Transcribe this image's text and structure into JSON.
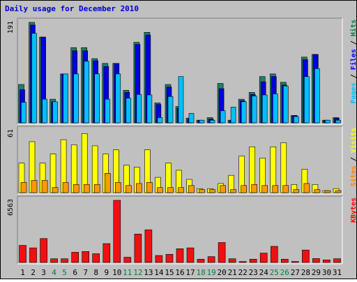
{
  "chart_data": {
    "type": "bar",
    "title": "Daily usage for December 2010",
    "categories": [
      "1",
      "2",
      "3",
      "4",
      "5",
      "6",
      "7",
      "8",
      "9",
      "10",
      "11",
      "12",
      "13",
      "14",
      "15",
      "16",
      "17",
      "18",
      "19",
      "20",
      "21",
      "22",
      "23",
      "24",
      "25",
      "26",
      "27",
      "28",
      "29",
      "30",
      "31"
    ],
    "weekend_days": [
      "4",
      "5",
      "11",
      "12",
      "18",
      "19",
      "25",
      "26"
    ],
    "panels": [
      {
        "id": "hits-files-pages",
        "ymax_label": "191",
        "ylim": [
          0,
          191
        ],
        "side_labels": [
          {
            "text": "Pages",
            "color": "#00c0ff"
          },
          {
            "text": " / ",
            "color": "#000000"
          },
          {
            "text": "Files",
            "color": "#0000ff"
          },
          {
            "text": " / ",
            "color": "#000000"
          },
          {
            "text": "Hits",
            "color": "#008040"
          }
        ],
        "series": [
          {
            "name": "Hits",
            "color": "#1e7f6a",
            "values": [
              73,
              191,
              163,
              45,
              93,
              143,
              143,
              122,
              113,
              113,
              62,
              153,
              172,
              38,
              73,
              31,
              9,
              5,
              10,
              75,
              5,
              45,
              58,
              88,
              93,
              77,
              14,
              125,
              130,
              5,
              10
            ]
          },
          {
            "name": "Files",
            "color": "#0000dd",
            "values": [
              63,
              186,
              163,
              40,
              93,
              137,
              137,
              118,
              107,
              113,
              58,
              149,
              167,
              35,
              68,
              28,
              7,
              5,
              7,
              65,
              5,
              42,
              54,
              78,
              88,
              72,
              14,
              120,
              130,
              5,
              9
            ]
          },
          {
            "name": "Pages",
            "color": "#00bfff",
            "values": [
              39,
              170,
              45,
              40,
              93,
              93,
              117,
              93,
              45,
              93,
              47,
              54,
              53,
              10,
              50,
              88,
              18,
              5,
              5,
              23,
              30,
              40,
              51,
              53,
              55,
              70,
              12,
              88,
              103,
              5,
              5
            ]
          }
        ]
      },
      {
        "id": "visits-sites",
        "ymax_label": "61",
        "ylim": [
          0,
          61
        ],
        "side_labels": [
          {
            "text": "Sites",
            "color": "#ff8000"
          },
          {
            "text": " / ",
            "color": "#000000"
          },
          {
            "text": "Visits",
            "color": "#ffff00"
          }
        ],
        "series": [
          {
            "name": "Visits",
            "color": "#ffff00",
            "values": [
              29,
              50,
              29,
              38,
              52,
              47,
              58,
              46,
              38,
              42,
              27,
              25,
              42,
              15,
              29,
              22,
              13,
              4,
              4,
              9,
              17,
              36,
              45,
              34,
              45,
              49,
              8,
              23,
              8,
              2,
              4
            ]
          },
          {
            "name": "Sites",
            "color": "#ff9900",
            "values": [
              10,
              12,
              12,
              5,
              10,
              8,
              8,
              8,
              19,
              10,
              7,
              9,
              10,
              5,
              5,
              5,
              7,
              3,
              3,
              7,
              3,
              7,
              8,
              7,
              7,
              7,
              3,
              9,
              3,
              2,
              2
            ]
          }
        ]
      },
      {
        "id": "kbytes",
        "ymax_label": "6563",
        "ylim": [
          0,
          6563
        ],
        "side_labels": [
          {
            "text": "KBytes",
            "color": "#ff0000"
          }
        ],
        "series": [
          {
            "name": "KBytes",
            "color": "#ee1111",
            "values": [
              1810,
              1540,
              2530,
              390,
              390,
              1080,
              1160,
              920,
              1990,
              6563,
              550,
              3000,
              3450,
              740,
              860,
              1450,
              1540,
              350,
              620,
              2110,
              390,
              100,
              350,
              990,
              1700,
              350,
              100,
              1310,
              410,
              270,
              390
            ]
          }
        ]
      }
    ]
  }
}
